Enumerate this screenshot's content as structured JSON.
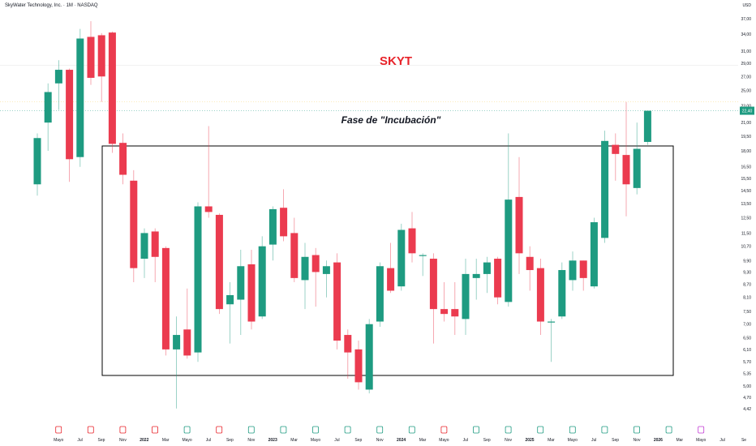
{
  "header": {
    "title": "SkyWater Technology, Inc. · 1M · NASDAQ",
    "currency": "USD"
  },
  "annotations": {
    "ticker": "SKYT",
    "phase": "Fase de \"Incubación\""
  },
  "colors": {
    "up": "#1e9b81",
    "down": "#eb3b4f",
    "ticker": "#e8232a",
    "box": "#000000",
    "axis_text": "#131722"
  },
  "chart_data": {
    "type": "candlestick",
    "title": "SkyWater Technology, Inc. · 1M · NASDAQ",
    "price_scale": "log",
    "ylim": [
      4.3,
      38.5
    ],
    "y_ticks": [
      "37,00",
      "34,00",
      "31,00",
      "29,00",
      "27,00",
      "25,00",
      "23,00",
      "21,00",
      "19,50",
      "18,00",
      "16,50",
      "15,50",
      "14,50",
      "13,50",
      "12,50",
      "11,50",
      "10,70",
      "9,90",
      "9,30",
      "8,70",
      "8,10",
      "7,50",
      "7,00",
      "6,50",
      "6,10",
      "5,70",
      "5,35",
      "5,00",
      "4,70",
      "4,42"
    ],
    "x_ticks": [
      "Mayo",
      "Jul",
      "Sep",
      "Nov",
      "2022",
      "Mar",
      "Mayo",
      "Jul",
      "Sep",
      "Nov",
      "2023",
      "Mar",
      "Mayo",
      "Jul",
      "Sep",
      "Nov",
      "2024",
      "Mar",
      "Mayo",
      "Jul",
      "Sep",
      "Nov",
      "2025",
      "Mar",
      "Mayo",
      "Jul",
      "Sep",
      "Nov",
      "2026",
      "Mar",
      "Mayo",
      "Jul",
      "Se"
    ],
    "last_price": "22,40",
    "first_period": "2021-04",
    "candles": [
      {
        "o": 15.0,
        "h": 19.8,
        "l": 14.1,
        "c": 19.3
      },
      {
        "o": 21.0,
        "h": 26.0,
        "l": 18.0,
        "c": 24.8
      },
      {
        "o": 26.0,
        "h": 29.5,
        "l": 22.5,
        "c": 28.0
      },
      {
        "o": 28.0,
        "h": 28.2,
        "l": 15.2,
        "c": 17.2
      },
      {
        "o": 17.4,
        "h": 35.0,
        "l": 16.5,
        "c": 33.2
      },
      {
        "o": 33.5,
        "h": 36.5,
        "l": 25.8,
        "c": 26.8
      },
      {
        "o": 33.8,
        "h": 34.2,
        "l": 23.5,
        "c": 27.0
      },
      {
        "o": 34.3,
        "h": 34.5,
        "l": 17.8,
        "c": 18.7
      },
      {
        "o": 18.8,
        "h": 19.8,
        "l": 15.0,
        "c": 15.8
      },
      {
        "o": 15.3,
        "h": 16.2,
        "l": 8.8,
        "c": 9.5
      },
      {
        "o": 10.0,
        "h": 11.8,
        "l": 9.0,
        "c": 11.5
      },
      {
        "o": 11.6,
        "h": 11.8,
        "l": 8.8,
        "c": 10.1
      },
      {
        "o": 10.6,
        "h": 10.7,
        "l": 5.9,
        "c": 6.1
      },
      {
        "o": 6.1,
        "h": 7.3,
        "l": 4.42,
        "c": 6.6
      },
      {
        "o": 6.8,
        "h": 8.5,
        "l": 5.8,
        "c": 5.9
      },
      {
        "o": 6.0,
        "h": 13.6,
        "l": 5.7,
        "c": 13.3
      },
      {
        "o": 13.3,
        "h": 20.6,
        "l": 12.5,
        "c": 12.9
      },
      {
        "o": 12.7,
        "h": 12.8,
        "l": 7.4,
        "c": 7.6
      },
      {
        "o": 7.8,
        "h": 8.8,
        "l": 6.3,
        "c": 8.2
      },
      {
        "o": 8.0,
        "h": 10.5,
        "l": 6.6,
        "c": 9.6
      },
      {
        "o": 9.7,
        "h": 10.5,
        "l": 6.8,
        "c": 7.1
      },
      {
        "o": 7.3,
        "h": 11.3,
        "l": 7.2,
        "c": 10.7
      },
      {
        "o": 10.8,
        "h": 13.3,
        "l": 9.9,
        "c": 13.1
      },
      {
        "o": 13.2,
        "h": 14.6,
        "l": 11.0,
        "c": 11.3
      },
      {
        "o": 11.5,
        "h": 12.5,
        "l": 8.8,
        "c": 9.0
      },
      {
        "o": 8.9,
        "h": 10.9,
        "l": 7.6,
        "c": 10.1
      },
      {
        "o": 10.2,
        "h": 10.6,
        "l": 7.7,
        "c": 9.3
      },
      {
        "o": 9.2,
        "h": 9.9,
        "l": 8.1,
        "c": 9.6
      },
      {
        "o": 9.8,
        "h": 10.3,
        "l": 6.1,
        "c": 6.4
      },
      {
        "o": 6.6,
        "h": 6.8,
        "l": 5.2,
        "c": 6.0
      },
      {
        "o": 6.1,
        "h": 6.4,
        "l": 4.9,
        "c": 5.1
      },
      {
        "o": 4.9,
        "h": 7.2,
        "l": 4.8,
        "c": 7.0
      },
      {
        "o": 7.1,
        "h": 9.8,
        "l": 6.9,
        "c": 9.6
      },
      {
        "o": 9.5,
        "h": 10.9,
        "l": 8.3,
        "c": 8.4
      },
      {
        "o": 8.6,
        "h": 12.1,
        "l": 8.4,
        "c": 11.7
      },
      {
        "o": 11.8,
        "h": 12.9,
        "l": 9.8,
        "c": 10.3
      },
      {
        "o": 10.2,
        "h": 10.3,
        "l": 9.1,
        "c": 10.2
      },
      {
        "o": 10.0,
        "h": 10.3,
        "l": 6.3,
        "c": 7.6
      },
      {
        "o": 7.6,
        "h": 8.8,
        "l": 7.1,
        "c": 7.4
      },
      {
        "o": 7.6,
        "h": 8.8,
        "l": 6.6,
        "c": 7.3
      },
      {
        "o": 7.2,
        "h": 10.0,
        "l": 6.6,
        "c": 9.2
      },
      {
        "o": 9.0,
        "h": 10.0,
        "l": 8.0,
        "c": 9.2
      },
      {
        "o": 9.2,
        "h": 10.1,
        "l": 8.3,
        "c": 9.8
      },
      {
        "o": 10.0,
        "h": 10.1,
        "l": 7.8,
        "c": 8.1
      },
      {
        "o": 7.9,
        "h": 19.8,
        "l": 7.7,
        "c": 13.8
      },
      {
        "o": 14.0,
        "h": 17.4,
        "l": 9.2,
        "c": 10.3
      },
      {
        "o": 10.1,
        "h": 10.7,
        "l": 8.4,
        "c": 9.4
      },
      {
        "o": 9.5,
        "h": 10.0,
        "l": 6.6,
        "c": 7.1
      },
      {
        "o": 7.1,
        "h": 7.2,
        "l": 5.7,
        "c": 7.1
      },
      {
        "o": 7.3,
        "h": 9.8,
        "l": 7.2,
        "c": 9.4
      },
      {
        "o": 8.9,
        "h": 10.4,
        "l": 8.4,
        "c": 9.9
      },
      {
        "o": 9.9,
        "h": 9.9,
        "l": 8.4,
        "c": 9.0
      },
      {
        "o": 8.6,
        "h": 12.5,
        "l": 8.5,
        "c": 12.2
      },
      {
        "o": 11.2,
        "h": 20.1,
        "l": 10.9,
        "c": 19.0
      },
      {
        "o": 18.6,
        "h": 19.8,
        "l": 15.3,
        "c": 17.7
      },
      {
        "o": 17.6,
        "h": 23.5,
        "l": 12.6,
        "c": 15.0
      },
      {
        "o": 14.7,
        "h": 21.0,
        "l": 14.2,
        "c": 18.2
      },
      {
        "o": 18.9,
        "h": 22.4,
        "l": 18.6,
        "c": 22.4
      }
    ]
  }
}
